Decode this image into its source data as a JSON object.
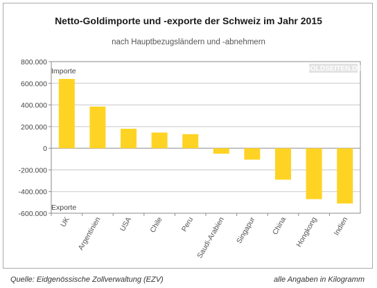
{
  "title": "Netto-Goldimporte und -exporte der Schweiz im Jahr 2015",
  "subtitle": "nach Hauptbezugsländern und -abnehmern",
  "footer": {
    "source": "Quelle: Eidgenössische Zollverwaltung (EZV)",
    "unit_note": "alle Angaben in Kilogramm"
  },
  "watermark": "GOLDSEITEN.DE",
  "colors": {
    "bar": "#ffd324",
    "grid": "#c8c8c8",
    "axis": "#8a8a8a"
  },
  "chart_data": {
    "type": "bar",
    "categories": [
      "UK",
      "Argentinien",
      "USA",
      "Chile",
      "Peru",
      "Saudi-Arabien",
      "Singapur",
      "China",
      "Hongkong",
      "Indien"
    ],
    "values": [
      640000,
      385000,
      180000,
      145000,
      130000,
      -50000,
      -105000,
      -290000,
      -470000,
      -510000
    ],
    "ylim": [
      -600000,
      800000
    ],
    "yticks": [
      800000,
      600000,
      400000,
      200000,
      0,
      -200000,
      -400000,
      -600000
    ],
    "ytick_labels": [
      "800.000",
      "600.000",
      "400.000",
      "200.000",
      "0",
      "-200.000",
      "-400.000",
      "-600.000"
    ],
    "annotations": {
      "top": "Importe",
      "bottom": "Exporte"
    },
    "grid": true,
    "legend": "none"
  }
}
